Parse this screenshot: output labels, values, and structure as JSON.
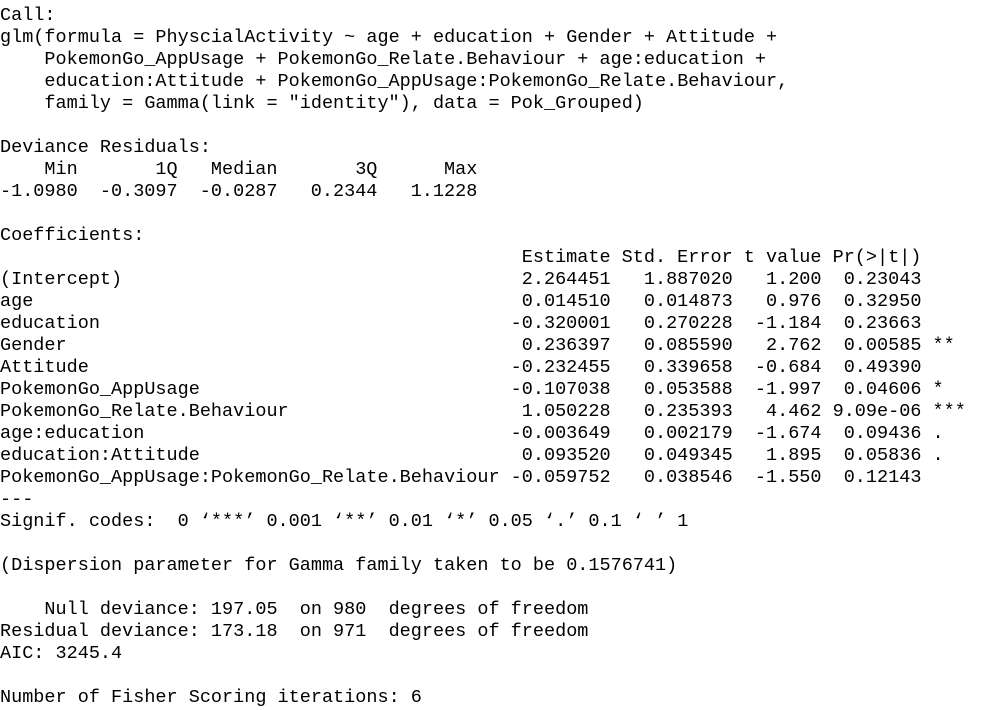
{
  "call": {
    "label": "Call:",
    "lines": [
      "glm(formula = PhyscialActivity ~ age + education + Gender + Attitude +",
      "PokemonGo_AppUsage + PokemonGo_Relate.Behaviour + age:education +",
      "education:Attitude + PokemonGo_AppUsage:PokemonGo_Relate.Behaviour,",
      "family = Gamma(link = \"identity\"), data = Pok_Grouped)"
    ]
  },
  "deviance_residuals": {
    "label": "Deviance Residuals:",
    "header": [
      "Min",
      "1Q",
      "Median",
      "3Q",
      "Max"
    ],
    "values": [
      "-1.0980",
      "-0.3097",
      "-0.0287",
      "0.2344",
      "1.1228"
    ]
  },
  "coefficients": {
    "label": "Coefficients:",
    "header": [
      "Estimate",
      "Std. Error",
      "t value",
      "Pr(>|t|)"
    ],
    "rows": [
      [
        "(Intercept)",
        "2.264451",
        "1.887020",
        "1.200",
        "0.23043"
      ],
      [
        "age",
        "0.014510",
        "0.014873",
        "0.976",
        "0.32950"
      ],
      [
        "education",
        "-0.320001",
        "0.270228",
        "-1.184",
        "0.23663"
      ],
      [
        "Gender",
        "0.236397",
        "0.085590",
        "2.762",
        "0.00585",
        "**"
      ],
      [
        "Attitude",
        "-0.232455",
        "0.339658",
        "-0.684",
        "0.49390"
      ],
      [
        "PokemonGo_AppUsage",
        "-0.107038",
        "0.053588",
        "-1.997",
        "0.04606",
        "*"
      ],
      [
        "PokemonGo_Relate.Behaviour",
        "1.050228",
        "0.235393",
        "4.462",
        "9.09e-06",
        "***"
      ],
      [
        "age:education",
        "-0.003649",
        "0.002179",
        "-1.674",
        "0.09436",
        "."
      ],
      [
        "education:Attitude",
        "0.093520",
        "0.049345",
        "1.895",
        "0.05836",
        "."
      ],
      [
        "PokemonGo_AppUsage:PokemonGo_Relate.Behaviour",
        "-0.059752",
        "0.038546",
        "-1.550",
        "0.12143"
      ]
    ],
    "separator": "---",
    "signif_codes": "Signif. codes:  0 ‘***’ 0.001 ‘**’ 0.01 ‘*’ 0.05 ‘.’ 0.1 ‘ ’ 1"
  },
  "dispersion": "(Dispersion parameter for Gamma family taken to be 0.1576741)",
  "deviance": [
    "    Null deviance: 197.05  on 980  degrees of freedom",
    "Residual deviance: 173.18  on 971  degrees of freedom",
    "AIC: 3245.4"
  ],
  "fisher": "Number of Fisher Scoring iterations: 6"
}
